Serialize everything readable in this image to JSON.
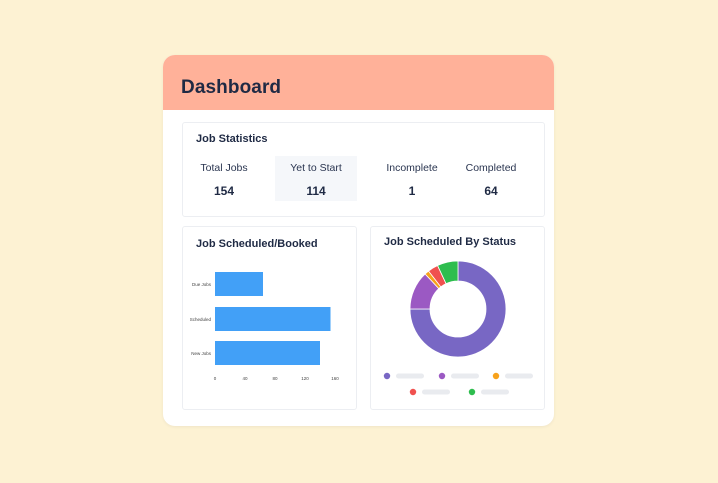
{
  "header": {
    "title": "Dashboard",
    "color": "#ffb199"
  },
  "job_statistics": {
    "title": "Job Statistics",
    "stats": [
      {
        "label": "Total Jobs",
        "value": "154"
      },
      {
        "label": "Yet to Start",
        "value": "114"
      },
      {
        "label": "Incomplete",
        "value": "1"
      },
      {
        "label": "Completed",
        "value": "64"
      }
    ]
  },
  "scheduled_booked": {
    "title": "Job Scheduled/Booked",
    "chart_data": {
      "type": "bar",
      "orientation": "horizontal",
      "categories": [
        "Due Jobs",
        "Scheduled",
        "New Jobs"
      ],
      "values": [
        64,
        154,
        140
      ],
      "xticks": [
        "0",
        "40",
        "80",
        "120",
        "160"
      ],
      "xlim": [
        0,
        160
      ],
      "color": "#42a0f7"
    }
  },
  "scheduled_by_status": {
    "title": "Job Scheduled By Status",
    "chart_data": {
      "type": "pie",
      "donut": true,
      "values": [
        75,
        13,
        1.5,
        3.5,
        7
      ],
      "colors": [
        "#7867c4",
        "#9b59c3",
        "#f7a21b",
        "#f0514f",
        "#2ebd4e"
      ],
      "legend_colors": [
        "#7867c4",
        "#9b59c3",
        "#f7a21b",
        "#f0514f",
        "#2ebd4e"
      ]
    }
  }
}
